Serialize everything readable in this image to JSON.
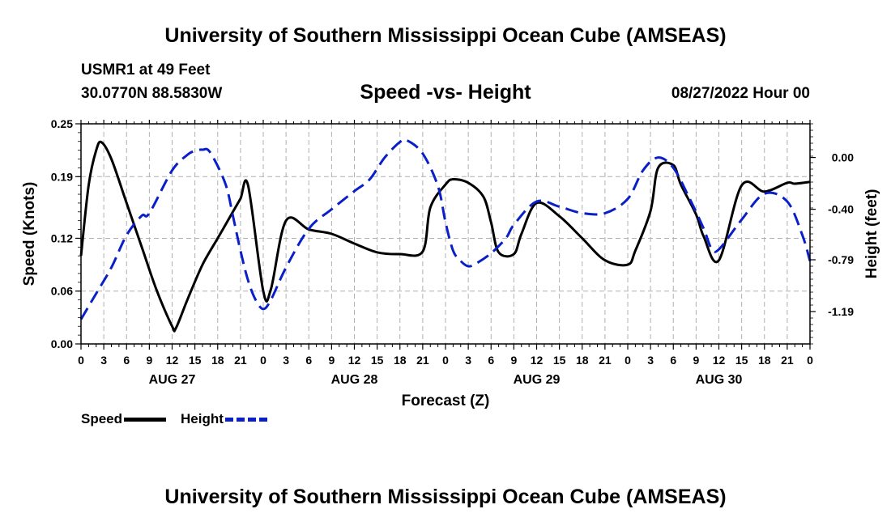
{
  "header": {
    "title": "University of Southern Mississippi Ocean Cube (AMSEAS)",
    "station": "USMR1 at 49 Feet",
    "coords": "30.0770N  88.5830W",
    "subtitle": "Speed -vs- Height",
    "datetime": "08/27/2022 Hour 00",
    "footer_title": "University of Southern Mississippi Ocean Cube (AMSEAS)"
  },
  "legend": {
    "speed_label": "Speed",
    "height_label": "Height"
  },
  "colors": {
    "speed": "#000000",
    "height": "#0a1fc8",
    "grid": "#b0b0b0"
  },
  "chart_data": {
    "type": "line",
    "title": "Speed -vs- Height",
    "xlabel": "Forecast (Z)",
    "ylabel": "Speed (Knots)",
    "y2label": "Height (feet)",
    "xlim": [
      0,
      96
    ],
    "ylim": [
      0.0,
      0.25
    ],
    "y2lim": [
      -1.44,
      0.26
    ],
    "x_ticks": [
      0,
      3,
      6,
      9,
      12,
      15,
      18,
      21,
      24,
      27,
      30,
      33,
      36,
      39,
      42,
      45,
      48,
      51,
      54,
      57,
      60,
      63,
      66,
      69,
      72,
      75,
      78,
      81,
      84,
      87,
      90,
      93,
      96
    ],
    "x_tick_labels": [
      "0",
      "3",
      "6",
      "9",
      "12",
      "15",
      "18",
      "21",
      "0",
      "3",
      "6",
      "9",
      "12",
      "15",
      "18",
      "21",
      "0",
      "3",
      "6",
      "9",
      "12",
      "15",
      "18",
      "21",
      "0",
      "3",
      "6",
      "9",
      "12",
      "15",
      "18",
      "21",
      "0"
    ],
    "day_labels": [
      {
        "x": 12,
        "label": "AUG 27"
      },
      {
        "x": 36,
        "label": "AUG 28"
      },
      {
        "x": 60,
        "label": "AUG 29"
      },
      {
        "x": 84,
        "label": "AUG 30"
      }
    ],
    "y_ticks": [
      0.0,
      0.06,
      0.12,
      0.19,
      0.25
    ],
    "y_tick_labels": [
      "0.00",
      "0.06",
      "0.12",
      "0.19",
      "0.25"
    ],
    "y2_ticks": [
      0.0,
      -0.4,
      -0.79,
      -1.19
    ],
    "y2_tick_labels": [
      "0.00",
      "-0.40",
      "-0.79",
      "-1.19"
    ],
    "grid": true,
    "series": [
      {
        "name": "Speed",
        "axis": "left",
        "style": "solid",
        "x": [
          0,
          1,
          2,
          2.7,
          4,
          6,
          8,
          10,
          12,
          12.5,
          14,
          16,
          18,
          20,
          21,
          22,
          24,
          25,
          27,
          30,
          33,
          36,
          39,
          42,
          45,
          46,
          48,
          49,
          51,
          53,
          54,
          55,
          57,
          58,
          60,
          63,
          66,
          69,
          72,
          73,
          75,
          76,
          78,
          79,
          81,
          82,
          84,
          87,
          90,
          93,
          94,
          96
        ],
        "values": [
          0.1,
          0.18,
          0.22,
          0.229,
          0.21,
          0.16,
          0.11,
          0.06,
          0.02,
          0.018,
          0.05,
          0.09,
          0.12,
          0.15,
          0.165,
          0.18,
          0.06,
          0.062,
          0.14,
          0.13,
          0.125,
          0.114,
          0.104,
          0.102,
          0.105,
          0.155,
          0.181,
          0.187,
          0.183,
          0.167,
          0.138,
          0.104,
          0.102,
          0.125,
          0.16,
          0.145,
          0.12,
          0.095,
          0.09,
          0.106,
          0.151,
          0.2,
          0.203,
          0.181,
          0.147,
          0.122,
          0.095,
          0.18,
          0.173,
          0.183,
          0.182,
          0.184
        ]
      },
      {
        "name": "Height",
        "axis": "right",
        "style": "dashed",
        "x": [
          0,
          2,
          4,
          6,
          8,
          9,
          12,
          14,
          15,
          16,
          17,
          19,
          20,
          21,
          22,
          23,
          24,
          25,
          27,
          30,
          33,
          36,
          38,
          40,
          42,
          43,
          45,
          47,
          48,
          49,
          50,
          51,
          52,
          54,
          56,
          57,
          60,
          63,
          66,
          69,
          72,
          74,
          76,
          78,
          80,
          82,
          83,
          84,
          87,
          90,
          93,
          95,
          96
        ],
        "values": [
          -1.25,
          -1.05,
          -0.85,
          -0.6,
          -0.45,
          -0.43,
          -0.1,
          0.02,
          0.05,
          0.06,
          0.04,
          -0.2,
          -0.45,
          -0.72,
          -0.95,
          -1.1,
          -1.17,
          -1.1,
          -0.85,
          -0.55,
          -0.4,
          -0.26,
          -0.17,
          0.0,
          0.12,
          0.13,
          0.03,
          -0.22,
          -0.5,
          -0.72,
          -0.8,
          -0.84,
          -0.82,
          -0.74,
          -0.62,
          -0.52,
          -0.34,
          -0.38,
          -0.43,
          -0.43,
          -0.32,
          -0.1,
          0.0,
          -0.08,
          -0.3,
          -0.55,
          -0.7,
          -0.71,
          -0.48,
          -0.28,
          -0.34,
          -0.6,
          -0.8
        ]
      }
    ]
  }
}
